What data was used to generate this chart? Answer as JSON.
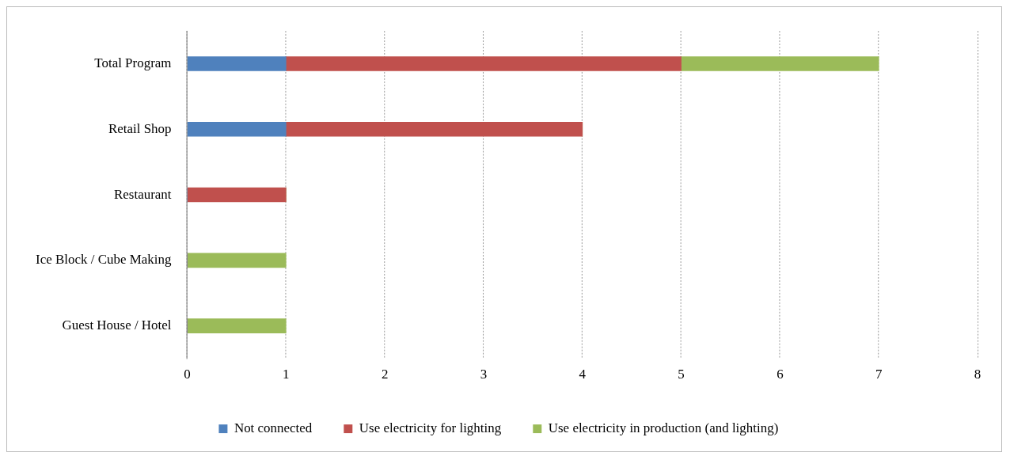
{
  "chart_data": {
    "type": "bar",
    "orientation": "horizontal",
    "stacked": true,
    "categories": [
      "Total Program",
      "Retail Shop",
      "Restaurant",
      "Ice Block / Cube Making",
      "Guest House / Hotel"
    ],
    "series": [
      {
        "name": "Not connected",
        "color": "#4f81bd",
        "values": [
          1,
          1,
          0,
          0,
          0
        ]
      },
      {
        "name": "Use electricity for lighting",
        "color": "#c0504d",
        "values": [
          4,
          3,
          1,
          0,
          0
        ]
      },
      {
        "name": "Use electricity in production (and lighting)",
        "color": "#9bbb59",
        "values": [
          2,
          0,
          0,
          1,
          1
        ]
      }
    ],
    "xlim": [
      0,
      8
    ],
    "xticks": [
      0,
      1,
      2,
      3,
      4,
      5,
      6,
      7,
      8
    ],
    "grid": "x",
    "legend": "bottom"
  }
}
